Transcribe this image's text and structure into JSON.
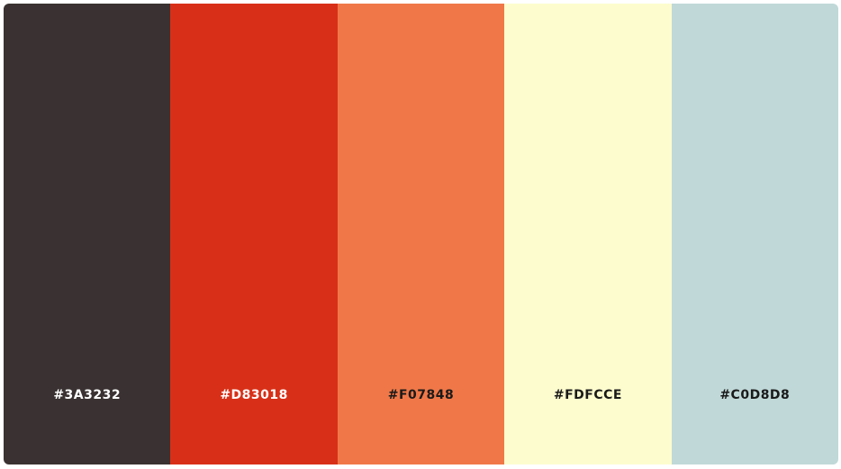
{
  "palette": {
    "swatches": [
      {
        "hex": "#3A3232",
        "color": "#3A3232",
        "text_color": "#FFFFFF"
      },
      {
        "hex": "#D83018",
        "color": "#D83018",
        "text_color": "#FFFFFF"
      },
      {
        "hex": "#F07848",
        "color": "#F07848",
        "text_color": "#1A1A1A"
      },
      {
        "hex": "#FDFCCE",
        "color": "#FDFCCE",
        "text_color": "#1A1A1A"
      },
      {
        "hex": "#C0D8D8",
        "color": "#C0D8D8",
        "text_color": "#1A1A1A"
      }
    ]
  }
}
